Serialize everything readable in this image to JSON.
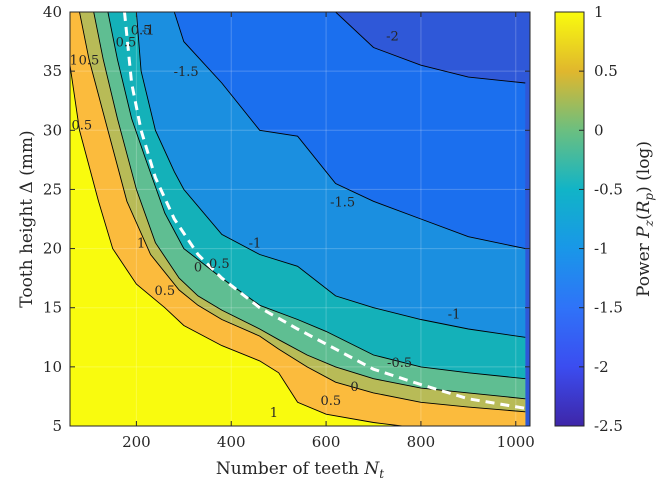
{
  "chart_data": {
    "type": "heatmap",
    "subtype": "filled-contour",
    "title": "",
    "xlabel": "Number of teeth N_t",
    "ylabel": "Tooth height Δ (mm)",
    "colorbar_label": "Power P_z(R_p) (log)",
    "xlim": [
      60,
      1030
    ],
    "ylim": [
      5,
      40
    ],
    "x_ticks": [
      "200",
      "400",
      "600",
      "800",
      "1000"
    ],
    "y_ticks": [
      "5",
      "10",
      "15",
      "20",
      "25",
      "30",
      "35",
      "40"
    ],
    "colorbar_ticks": [
      "1",
      "0.5",
      "0",
      "-0.5",
      "-1",
      "-1.5",
      "-2",
      "-2.5"
    ],
    "colorbar_range": [
      -2.5,
      1
    ],
    "colormap": "parula",
    "grid": true,
    "contour_levels": [
      -2,
      -1.5,
      -1,
      -0.5,
      0,
      0.5,
      1
    ],
    "contours": [
      {
        "level": 1,
        "points": [
          [
            60,
            35.5
          ],
          [
            80,
            30
          ],
          [
            120,
            24
          ],
          [
            150,
            20
          ],
          [
            200,
            17
          ],
          [
            260,
            15
          ],
          [
            300,
            13.5
          ],
          [
            380,
            11.8
          ],
          [
            460,
            10.5
          ],
          [
            500,
            9.5
          ],
          [
            540,
            7
          ],
          [
            600,
            6
          ],
          [
            700,
            5.3
          ],
          [
            760,
            5
          ]
        ]
      },
      {
        "level": 0.5,
        "points": [
          [
            80,
            40
          ],
          [
            100,
            36
          ],
          [
            140,
            30
          ],
          [
            180,
            24
          ],
          [
            230,
            19.5
          ],
          [
            290,
            16.5
          ],
          [
            330,
            15.2
          ],
          [
            380,
            14
          ],
          [
            460,
            12.6
          ],
          [
            500,
            11.5
          ],
          [
            560,
            10
          ],
          [
            620,
            8.7
          ],
          [
            700,
            7.8
          ],
          [
            800,
            7
          ],
          [
            900,
            6.6
          ],
          [
            1020,
            6.2
          ]
        ]
      },
      {
        "level": 0,
        "points": [
          [
            110,
            40
          ],
          [
            130,
            36
          ],
          [
            160,
            31
          ],
          [
            200,
            25
          ],
          [
            240,
            20.5
          ],
          [
            290,
            17.5
          ],
          [
            330,
            16
          ],
          [
            380,
            14.8
          ],
          [
            460,
            13.2
          ],
          [
            500,
            12.3
          ],
          [
            560,
            11
          ],
          [
            620,
            10
          ],
          [
            700,
            9
          ],
          [
            800,
            8.2
          ],
          [
            900,
            7.8
          ],
          [
            1020,
            7.3
          ]
        ]
      },
      {
        "level": -0.5,
        "points": [
          [
            140,
            40
          ],
          [
            160,
            36
          ],
          [
            190,
            31
          ],
          [
            220,
            27.5
          ],
          [
            260,
            23
          ],
          [
            300,
            20
          ],
          [
            380,
            17.5
          ],
          [
            460,
            15.2
          ],
          [
            540,
            14
          ],
          [
            600,
            13
          ],
          [
            700,
            11
          ],
          [
            800,
            10
          ],
          [
            900,
            9.5
          ],
          [
            1020,
            9
          ]
        ]
      },
      {
        "level": -1,
        "points": [
          [
            200,
            40
          ],
          [
            210,
            35
          ],
          [
            240,
            30
          ],
          [
            280,
            26.5
          ],
          [
            300,
            25
          ],
          [
            380,
            21.2
          ],
          [
            460,
            19.5
          ],
          [
            540,
            18.5
          ],
          [
            620,
            16
          ],
          [
            700,
            15
          ],
          [
            800,
            14
          ],
          [
            900,
            13.2
          ],
          [
            1020,
            12.5
          ]
        ]
      },
      {
        "level": -1.5,
        "points": [
          [
            280,
            40
          ],
          [
            300,
            37.5
          ],
          [
            380,
            34
          ],
          [
            460,
            30
          ],
          [
            540,
            29.5
          ],
          [
            620,
            25.5
          ],
          [
            700,
            24
          ],
          [
            800,
            22.5
          ],
          [
            900,
            21
          ],
          [
            1020,
            20
          ]
        ]
      },
      {
        "level": -2,
        "points": [
          [
            620,
            40
          ],
          [
            700,
            37
          ],
          [
            800,
            35.5
          ],
          [
            900,
            34.5
          ],
          [
            1020,
            34
          ]
        ]
      }
    ],
    "contour_labels": [
      {
        "text": "1",
        "x": 68,
        "y": 36
      },
      {
        "text": "0.5",
        "x": 100,
        "y": 36
      },
      {
        "text": "0.5",
        "x": 85,
        "y": 30.5
      },
      {
        "text": "0.5",
        "x": 178,
        "y": 37.5
      },
      {
        "text": "0.5",
        "x": 210,
        "y": 38.5
      },
      {
        "text": "-1",
        "x": 225,
        "y": 38.5
      },
      {
        "text": "-1.5",
        "x": 305,
        "y": 35
      },
      {
        "text": "-2",
        "x": 740,
        "y": 38
      },
      {
        "text": "-1.5",
        "x": 635,
        "y": 24
      },
      {
        "text": "-1",
        "x": 450,
        "y": 20.5
      },
      {
        "text": "1",
        "x": 210,
        "y": 20.5
      },
      {
        "text": "0.5",
        "x": 260,
        "y": 16.5
      },
      {
        "text": "0",
        "x": 330,
        "y": 18.5
      },
      {
        "text": "0.5",
        "x": 375,
        "y": 18.8
      },
      {
        "text": "-1",
        "x": 870,
        "y": 14.5
      },
      {
        "text": "-0.5",
        "x": 755,
        "y": 10.4
      },
      {
        "text": "0",
        "x": 660,
        "y": 8.4
      },
      {
        "text": "0.5",
        "x": 610,
        "y": 7.2
      },
      {
        "text": "1",
        "x": 490,
        "y": 6.2
      }
    ],
    "boundary_curve": {
      "style": "dashed-white",
      "points": [
        [
          175,
          40
        ],
        [
          190,
          34
        ],
        [
          210,
          30
        ],
        [
          240,
          26
        ],
        [
          280,
          22.5
        ],
        [
          330,
          19.5
        ],
        [
          380,
          17.5
        ],
        [
          460,
          15
        ],
        [
          540,
          13.2
        ],
        [
          620,
          11.5
        ],
        [
          700,
          9.8
        ],
        [
          800,
          8.5
        ],
        [
          900,
          7.3
        ],
        [
          1020,
          6.5
        ]
      ]
    },
    "colors": {
      "band_above_1": "#f9fb0e",
      "band_0.5_1": "#fbbb3d",
      "band_0_0.5": "#b8bb57",
      "band_-0.5_0": "#5fbe92",
      "band_-1_-0.5": "#14b1b9",
      "band_-1.5_-1": "#1b8fe0",
      "band_-2_-1.5": "#1b6fee",
      "band_below_-2": "#2f58d8",
      "contour_line": "#000000",
      "boundary_curve": "#ffffff"
    }
  }
}
